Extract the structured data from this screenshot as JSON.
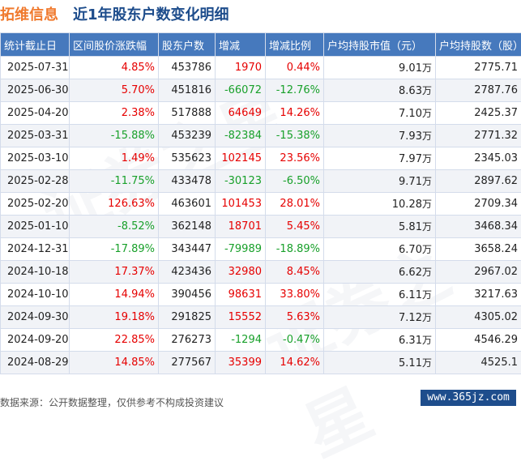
{
  "header": {
    "stock_name": "拓维信息",
    "title": "近1年股东户数变化明细"
  },
  "footer": {
    "source": "数据来源：公开数据整理，仅供参考不构成投资建议",
    "site": "www.365jz.com"
  },
  "watermark": [
    "证券之星",
    "证券之星"
  ],
  "colors": {
    "header_bg": "#4679bd",
    "up": "#e60000",
    "down": "#18a02a",
    "title": "#1e4d8c",
    "stock": "#f07a2e"
  },
  "chart_data": {
    "type": "table",
    "columns": [
      "统计截止日",
      "区间股价涨跌幅",
      "股东户数",
      "增减",
      "增减比例",
      "户均持股市值（元）",
      "户均持股数（股）"
    ],
    "rows": [
      [
        "2025-07-31",
        "4.85%",
        "453786",
        "1970",
        "0.44%",
        "9.01",
        "2775.71"
      ],
      [
        "2025-06-30",
        "5.70%",
        "451816",
        "-66072",
        "-12.76%",
        "8.63",
        "2787.76"
      ],
      [
        "2025-04-20",
        "2.38%",
        "517888",
        "64649",
        "14.26%",
        "7.10",
        "2425.37"
      ],
      [
        "2025-03-31",
        "-15.88%",
        "453239",
        "-82384",
        "-15.38%",
        "7.93",
        "2771.32"
      ],
      [
        "2025-03-10",
        "1.49%",
        "535623",
        "102145",
        "23.56%",
        "7.97",
        "2345.03"
      ],
      [
        "2025-02-28",
        "-11.75%",
        "433478",
        "-30123",
        "-6.50%",
        "9.71",
        "2897.62"
      ],
      [
        "2025-02-20",
        "126.63%",
        "463601",
        "101453",
        "28.01%",
        "10.28",
        "2709.34"
      ],
      [
        "2025-01-10",
        "-8.52%",
        "362148",
        "18701",
        "5.45%",
        "5.81",
        "3468.34"
      ],
      [
        "2024-12-31",
        "-17.89%",
        "343447",
        "-79989",
        "-18.89%",
        "6.70",
        "3658.24"
      ],
      [
        "2024-10-18",
        "17.37%",
        "423436",
        "32980",
        "8.45%",
        "6.62",
        "2967.02"
      ],
      [
        "2024-10-10",
        "14.94%",
        "390456",
        "98631",
        "33.80%",
        "6.11",
        "3217.63"
      ],
      [
        "2024-09-30",
        "19.18%",
        "291825",
        "15552",
        "5.63%",
        "7.12",
        "4305.02"
      ],
      [
        "2024-09-20",
        "22.85%",
        "276273",
        "-1294",
        "-0.47%",
        "6.31",
        "4546.29"
      ],
      [
        "2024-08-29",
        "14.85%",
        "277567",
        "35399",
        "14.62%",
        "5.11",
        "4525.1"
      ]
    ],
    "market_value_unit": "万"
  }
}
